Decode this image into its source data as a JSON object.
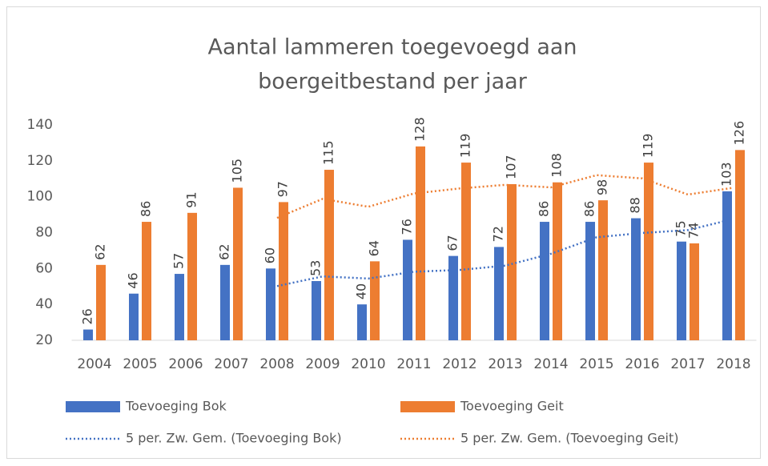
{
  "chart_data": {
    "type": "bar",
    "title": [
      "Aantal lammeren toegevoegd aan",
      "boergeitbestand per jaar"
    ],
    "categories": [
      "2004",
      "2005",
      "2006",
      "2007",
      "2008",
      "2009",
      "2010",
      "2011",
      "2012",
      "2013",
      "2014",
      "2015",
      "2016",
      "2017",
      "2018"
    ],
    "series": [
      {
        "name": "Toevoeging Bok",
        "color": "#4472c4",
        "kind": "bar",
        "values": [
          26,
          46,
          57,
          62,
          60,
          53,
          40,
          76,
          67,
          72,
          86,
          86,
          88,
          75,
          103
        ]
      },
      {
        "name": "Toevoeging Geit",
        "color": "#ed7d31",
        "kind": "bar",
        "values": [
          62,
          86,
          91,
          105,
          97,
          115,
          64,
          128,
          119,
          107,
          108,
          98,
          119,
          74,
          126
        ]
      },
      {
        "name": "5 per. Zw. Gem. (Toevoeging Bok)",
        "color": "#4472c4",
        "kind": "line",
        "values": [
          null,
          null,
          null,
          null,
          50.2,
          55.6,
          54.4,
          58.2,
          59.2,
          61.6,
          68.2,
          77.4,
          79.8,
          81.4,
          87.6
        ]
      },
      {
        "name": "5 per. Zw. Gem. (Toevoeging Geit)",
        "color": "#ed7d31",
        "kind": "line",
        "values": [
          null,
          null,
          null,
          null,
          88.2,
          98.8,
          94.4,
          101.8,
          104.6,
          106.6,
          105.2,
          112,
          110.2,
          101.2,
          105
        ]
      }
    ],
    "ylim": [
      20,
      140
    ],
    "yticks": [
      20,
      40,
      60,
      80,
      100,
      120,
      140
    ],
    "grid": false,
    "legend": "bottom"
  }
}
